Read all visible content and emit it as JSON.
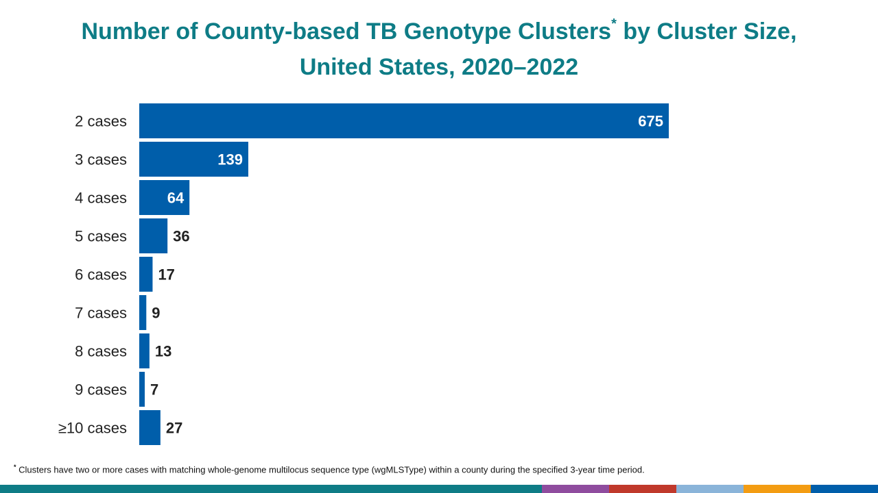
{
  "title": {
    "line1_text": "Number of County-based TB Genotype Clusters",
    "line1_marker": "*",
    "line1_suffix": " by Cluster Size,",
    "line2": "United States, 2020–2022"
  },
  "chart_data": {
    "type": "bar",
    "orientation": "horizontal",
    "title": "Number of County-based TB Genotype Clusters* by Cluster Size, United States, 2020–2022",
    "categories": [
      "2 cases",
      "3 cases",
      "4 cases",
      "5 cases",
      "6 cases",
      "7 cases",
      "8 cases",
      "9 cases",
      "≥10 cases"
    ],
    "values": [
      675,
      139,
      64,
      36,
      17,
      9,
      13,
      7,
      27
    ],
    "xlim": [
      0,
      675
    ],
    "grid": false,
    "bar_color": "#005eaa",
    "label_inside_color": "#ffffff",
    "label_outside_color": "#222222"
  },
  "footnote": {
    "marker": "*",
    "text": " Clusters have two or more cases with matching whole-genome multilocus sequence type (wgMLSType) within a county during the specified 3-year time period."
  },
  "bottom_bar": {
    "colors": [
      "#0e7c86",
      "#8f4c9e",
      "#c0392b",
      "#8ab4d9",
      "#f39c12",
      "#005eaa"
    ]
  }
}
